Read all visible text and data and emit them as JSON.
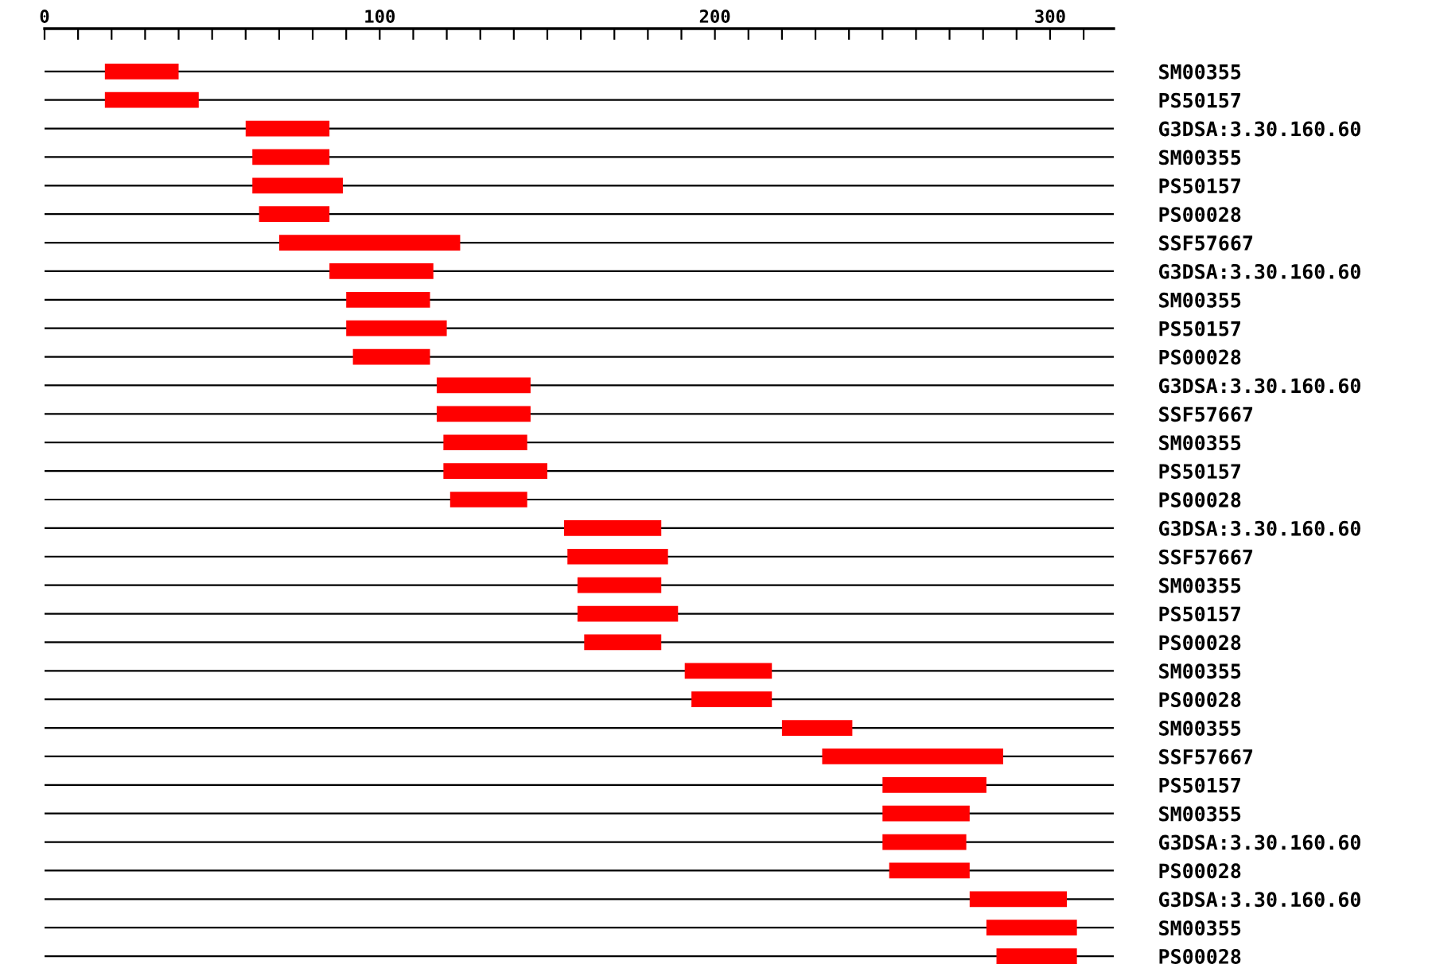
{
  "chart_data": {
    "type": "bar",
    "orientation": "horizontal",
    "categories": [
      "SM00355",
      "PS50157",
      "G3DSA:3.30.160.60",
      "SM00355",
      "PS50157",
      "PS00028",
      "SSF57667",
      "G3DSA:3.30.160.60",
      "SM00355",
      "PS50157",
      "PS00028",
      "G3DSA:3.30.160.60",
      "SSF57667",
      "SM00355",
      "PS50157",
      "PS00028",
      "G3DSA:3.30.160.60",
      "SSF57667",
      "SM00355",
      "PS50157",
      "PS00028",
      "SM00355",
      "PS00028",
      "SM00355",
      "SSF57667",
      "PS50157",
      "SM00355",
      "G3DSA:3.30.160.60",
      "PS00028",
      "G3DSA:3.30.160.60",
      "SM00355",
      "PS00028"
    ],
    "base": [
      18,
      18,
      60,
      62,
      62,
      64,
      70,
      85,
      90,
      90,
      92,
      117,
      117,
      119,
      119,
      121,
      155,
      156,
      159,
      159,
      161,
      191,
      193,
      220,
      232,
      250,
      250,
      250,
      252,
      276,
      281,
      284
    ],
    "values": [
      22,
      28,
      25,
      23,
      27,
      21,
      54,
      31,
      25,
      30,
      23,
      28,
      28,
      25,
      31,
      23,
      29,
      30,
      25,
      30,
      23,
      26,
      24,
      21,
      54,
      31,
      26,
      25,
      24,
      29,
      27,
      24
    ],
    "color": "#ff0000",
    "xlim": [
      0,
      319
    ],
    "xticks": [
      0,
      {
        "value": 10,
        "label": null
      },
      {
        "value": 20,
        "label": null
      },
      {
        "value": 30,
        "label": null
      },
      {
        "value": 40,
        "label": null
      },
      {
        "value": 50,
        "label": null
      },
      {
        "value": 60,
        "label": null
      },
      {
        "value": 70,
        "label": null
      },
      {
        "value": 80,
        "label": null
      },
      {
        "value": 90,
        "label": null
      },
      100,
      {
        "value": 110,
        "label": null
      },
      {
        "value": 120,
        "label": null
      },
      {
        "value": 130,
        "label": null
      },
      {
        "value": 140,
        "label": null
      },
      {
        "value": 150,
        "label": null
      },
      {
        "value": 160,
        "label": null
      },
      {
        "value": 170,
        "label": null
      },
      {
        "value": 180,
        "label": null
      },
      {
        "value": 190,
        "label": null
      },
      200,
      {
        "value": 210,
        "label": null
      },
      {
        "value": 220,
        "label": null
      },
      {
        "value": 230,
        "label": null
      },
      {
        "value": 240,
        "label": null
      },
      {
        "value": 250,
        "label": null
      },
      {
        "value": 260,
        "label": null
      },
      {
        "value": 270,
        "label": null
      },
      {
        "value": 280,
        "label": null
      },
      {
        "value": 290,
        "label": null
      },
      300,
      {
        "value": 310,
        "label": null
      }
    ],
    "grid": "y"
  }
}
